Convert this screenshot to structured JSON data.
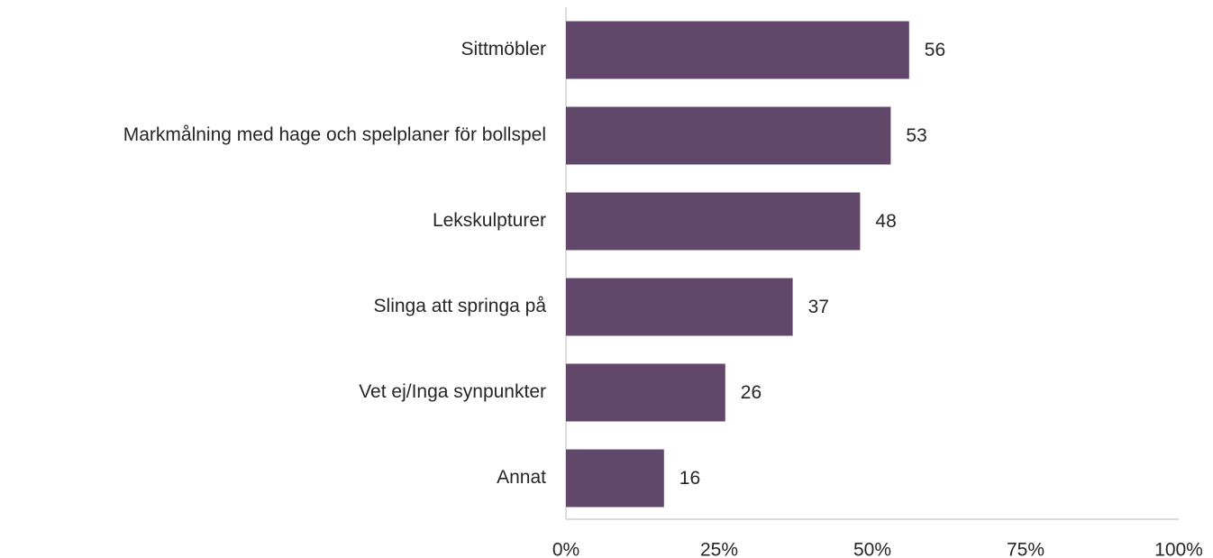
{
  "chart_data": {
    "type": "barh",
    "categories": [
      "Sittmöbler",
      "Markmålning med hage och spelplaner för bollspel",
      "Lekskulpturer",
      "Slinga att springa på",
      "Vet ej/Inga synpunkter",
      "Annat"
    ],
    "values": [
      56,
      53,
      48,
      37,
      26,
      16
    ],
    "color": "#61476a",
    "xlim": [
      0,
      100
    ],
    "xticks": [
      {
        "value": 0,
        "label": "0%"
      },
      {
        "value": 25,
        "label": "25%"
      },
      {
        "value": 50,
        "label": "50%"
      },
      {
        "value": 75,
        "label": "75%"
      },
      {
        "value": 100,
        "label": "100%"
      }
    ],
    "grid": false
  }
}
